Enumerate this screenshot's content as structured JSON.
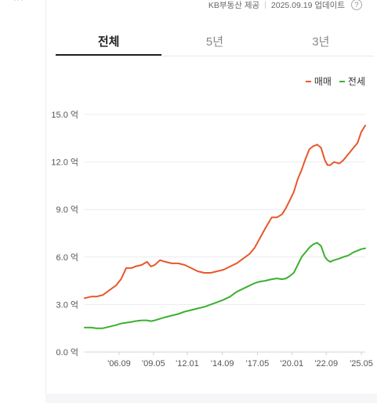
{
  "source": {
    "provider": "KB부동산 제공",
    "updated": "2025.09.19 업데이트",
    "help_symbol": "?"
  },
  "tabs": [
    {
      "label": "전체",
      "active": true
    },
    {
      "label": "5년",
      "active": false
    },
    {
      "label": "3년",
      "active": false
    }
  ],
  "colors": {
    "sale": "#e8572a",
    "jeonse": "#3cb02e",
    "grid": "#e9ecf0"
  },
  "chart_data": {
    "type": "line",
    "title": "",
    "xlabel": "",
    "ylabel": "",
    "x_ticks": [
      "'06.09",
      "'09.05",
      "'12.01",
      "'14.09",
      "'17.05",
      "'20.01",
      "'22.09",
      "'25.05"
    ],
    "y_ticks": [
      "0.0 억",
      "3.0 억",
      "6.0 억",
      "9.0 억",
      "12.0 억",
      "15.0 억"
    ],
    "ylim": [
      0,
      15
    ],
    "xlim": [
      2004.1,
      2025.7
    ],
    "grid": true,
    "legend_position": "top-right",
    "series": [
      {
        "name": "매매",
        "x": [
          2004.1,
          2004.6,
          2005.0,
          2005.5,
          2006.0,
          2006.5,
          2006.9,
          2007.3,
          2007.7,
          2008.0,
          2008.5,
          2008.9,
          2009.2,
          2009.5,
          2009.9,
          2010.3,
          2010.8,
          2011.3,
          2011.8,
          2012.3,
          2012.8,
          2013.3,
          2013.8,
          2014.3,
          2014.8,
          2015.3,
          2015.8,
          2016.3,
          2016.8,
          2017.2,
          2017.6,
          2018.0,
          2018.5,
          2018.9,
          2019.3,
          2019.6,
          2019.9,
          2020.2,
          2020.5,
          2020.8,
          2021.1,
          2021.4,
          2021.7,
          2022.0,
          2022.3,
          2022.6,
          2022.8,
          2023.0,
          2023.3,
          2023.7,
          2024.0,
          2024.4,
          2024.8,
          2025.1,
          2025.4,
          2025.7
        ],
        "values": [
          3.4,
          3.5,
          3.5,
          3.6,
          3.9,
          4.2,
          4.6,
          5.3,
          5.3,
          5.4,
          5.5,
          5.7,
          5.4,
          5.5,
          5.8,
          5.7,
          5.6,
          5.6,
          5.5,
          5.3,
          5.1,
          5.0,
          5.0,
          5.1,
          5.2,
          5.4,
          5.6,
          5.9,
          6.2,
          6.6,
          7.2,
          7.8,
          8.5,
          8.5,
          8.7,
          9.1,
          9.6,
          10.1,
          10.9,
          11.5,
          12.2,
          12.8,
          13.0,
          13.1,
          12.9,
          12.1,
          11.8,
          11.8,
          12.0,
          11.9,
          12.1,
          12.5,
          12.9,
          13.2,
          13.9,
          14.3
        ]
      },
      {
        "name": "전세",
        "x": [
          2004.1,
          2004.6,
          2005.0,
          2005.5,
          2006.0,
          2006.5,
          2006.9,
          2007.3,
          2007.7,
          2008.0,
          2008.5,
          2008.9,
          2009.2,
          2009.5,
          2009.9,
          2010.3,
          2010.8,
          2011.3,
          2011.8,
          2012.3,
          2012.8,
          2013.3,
          2013.8,
          2014.3,
          2014.8,
          2015.3,
          2015.8,
          2016.3,
          2016.8,
          2017.2,
          2017.6,
          2018.0,
          2018.5,
          2018.9,
          2019.3,
          2019.6,
          2019.9,
          2020.2,
          2020.5,
          2020.8,
          2021.1,
          2021.4,
          2021.7,
          2022.0,
          2022.3,
          2022.6,
          2022.8,
          2023.0,
          2023.3,
          2023.7,
          2024.0,
          2024.4,
          2024.8,
          2025.1,
          2025.4,
          2025.7
        ],
        "values": [
          1.55,
          1.55,
          1.5,
          1.5,
          1.6,
          1.7,
          1.8,
          1.85,
          1.9,
          1.95,
          2.0,
          2.0,
          1.95,
          2.0,
          2.1,
          2.2,
          2.3,
          2.4,
          2.55,
          2.65,
          2.75,
          2.85,
          3.0,
          3.15,
          3.3,
          3.5,
          3.8,
          4.0,
          4.2,
          4.35,
          4.45,
          4.5,
          4.6,
          4.65,
          4.6,
          4.65,
          4.8,
          5.0,
          5.5,
          6.0,
          6.3,
          6.6,
          6.8,
          6.9,
          6.7,
          6.0,
          5.8,
          5.7,
          5.8,
          5.9,
          6.0,
          6.1,
          6.3,
          6.4,
          6.5,
          6.55
        ]
      }
    ]
  }
}
